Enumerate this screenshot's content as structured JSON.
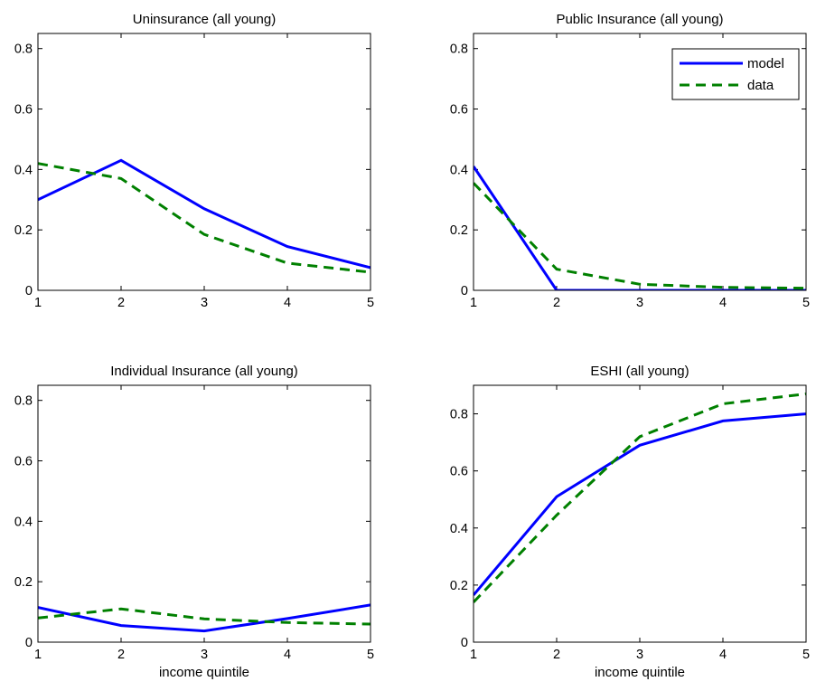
{
  "chart_data": [
    {
      "type": "line",
      "title": "Uninsurance (all young)",
      "xlabel": "",
      "ylabel": "",
      "x": [
        1,
        2,
        3,
        4,
        5
      ],
      "xlim": [
        1,
        5
      ],
      "ylim": [
        0,
        0.85
      ],
      "xticks": [
        "1",
        "2",
        "3",
        "4",
        "5"
      ],
      "yticks": [
        0,
        0.2,
        0.4,
        0.6,
        0.8
      ],
      "ytick_labels": [
        "0",
        "0.2",
        "0.4",
        "0.6",
        "0.8"
      ],
      "legend": false,
      "grid": false,
      "series": [
        {
          "name": "model",
          "values": [
            0.3,
            0.43,
            0.27,
            0.145,
            0.075
          ],
          "color": "#0000ff",
          "style": "solid"
        },
        {
          "name": "data",
          "values": [
            0.42,
            0.37,
            0.185,
            0.09,
            0.06
          ],
          "color": "#008000",
          "style": "dashed"
        }
      ]
    },
    {
      "type": "line",
      "title": "Public Insurance (all young)",
      "xlabel": "",
      "ylabel": "",
      "x": [
        1,
        2,
        3,
        4,
        5
      ],
      "xlim": [
        1,
        5
      ],
      "ylim": [
        0,
        0.85
      ],
      "xticks": [
        "1",
        "2",
        "3",
        "4",
        "5"
      ],
      "yticks": [
        0,
        0.2,
        0.4,
        0.6,
        0.8
      ],
      "ytick_labels": [
        "0",
        "0.2",
        "0.4",
        "0.6",
        "0.8"
      ],
      "legend": true,
      "legend_position": "top-right",
      "grid": false,
      "series": [
        {
          "name": "model",
          "values": [
            0.41,
            0.0,
            0.0,
            0.0,
            0.0
          ],
          "color": "#0000ff",
          "style": "solid"
        },
        {
          "name": "data",
          "values": [
            0.355,
            0.07,
            0.02,
            0.01,
            0.007
          ],
          "color": "#008000",
          "style": "dashed"
        }
      ]
    },
    {
      "type": "line",
      "title": "Individual Insurance (all young)",
      "xlabel": "income quintile",
      "ylabel": "",
      "x": [
        1,
        2,
        3,
        4,
        5
      ],
      "xlim": [
        1,
        5
      ],
      "ylim": [
        0,
        0.85
      ],
      "xticks": [
        "1",
        "2",
        "3",
        "4",
        "5"
      ],
      "yticks": [
        0,
        0.2,
        0.4,
        0.6,
        0.8
      ],
      "ytick_labels": [
        "0",
        "0.2",
        "0.4",
        "0.6",
        "0.8"
      ],
      "legend": false,
      "grid": false,
      "series": [
        {
          "name": "model",
          "values": [
            0.115,
            0.055,
            0.037,
            0.078,
            0.123
          ],
          "color": "#0000ff",
          "style": "solid"
        },
        {
          "name": "data",
          "values": [
            0.08,
            0.11,
            0.077,
            0.065,
            0.06
          ],
          "color": "#008000",
          "style": "dashed"
        }
      ]
    },
    {
      "type": "line",
      "title": "ESHI (all young)",
      "xlabel": "income quintile",
      "ylabel": "",
      "x": [
        1,
        2,
        3,
        4,
        5
      ],
      "xlim": [
        1,
        5
      ],
      "ylim": [
        0,
        0.9
      ],
      "xticks": [
        "1",
        "2",
        "3",
        "4",
        "5"
      ],
      "yticks": [
        0,
        0.2,
        0.4,
        0.6,
        0.8
      ],
      "ytick_labels": [
        "0",
        "0.2",
        "0.4",
        "0.6",
        "0.8"
      ],
      "legend": false,
      "grid": false,
      "series": [
        {
          "name": "model",
          "values": [
            0.165,
            0.51,
            0.69,
            0.775,
            0.8
          ],
          "color": "#0000ff",
          "style": "solid"
        },
        {
          "name": "data",
          "values": [
            0.14,
            0.445,
            0.72,
            0.835,
            0.87
          ],
          "color": "#008000",
          "style": "dashed"
        }
      ]
    }
  ]
}
